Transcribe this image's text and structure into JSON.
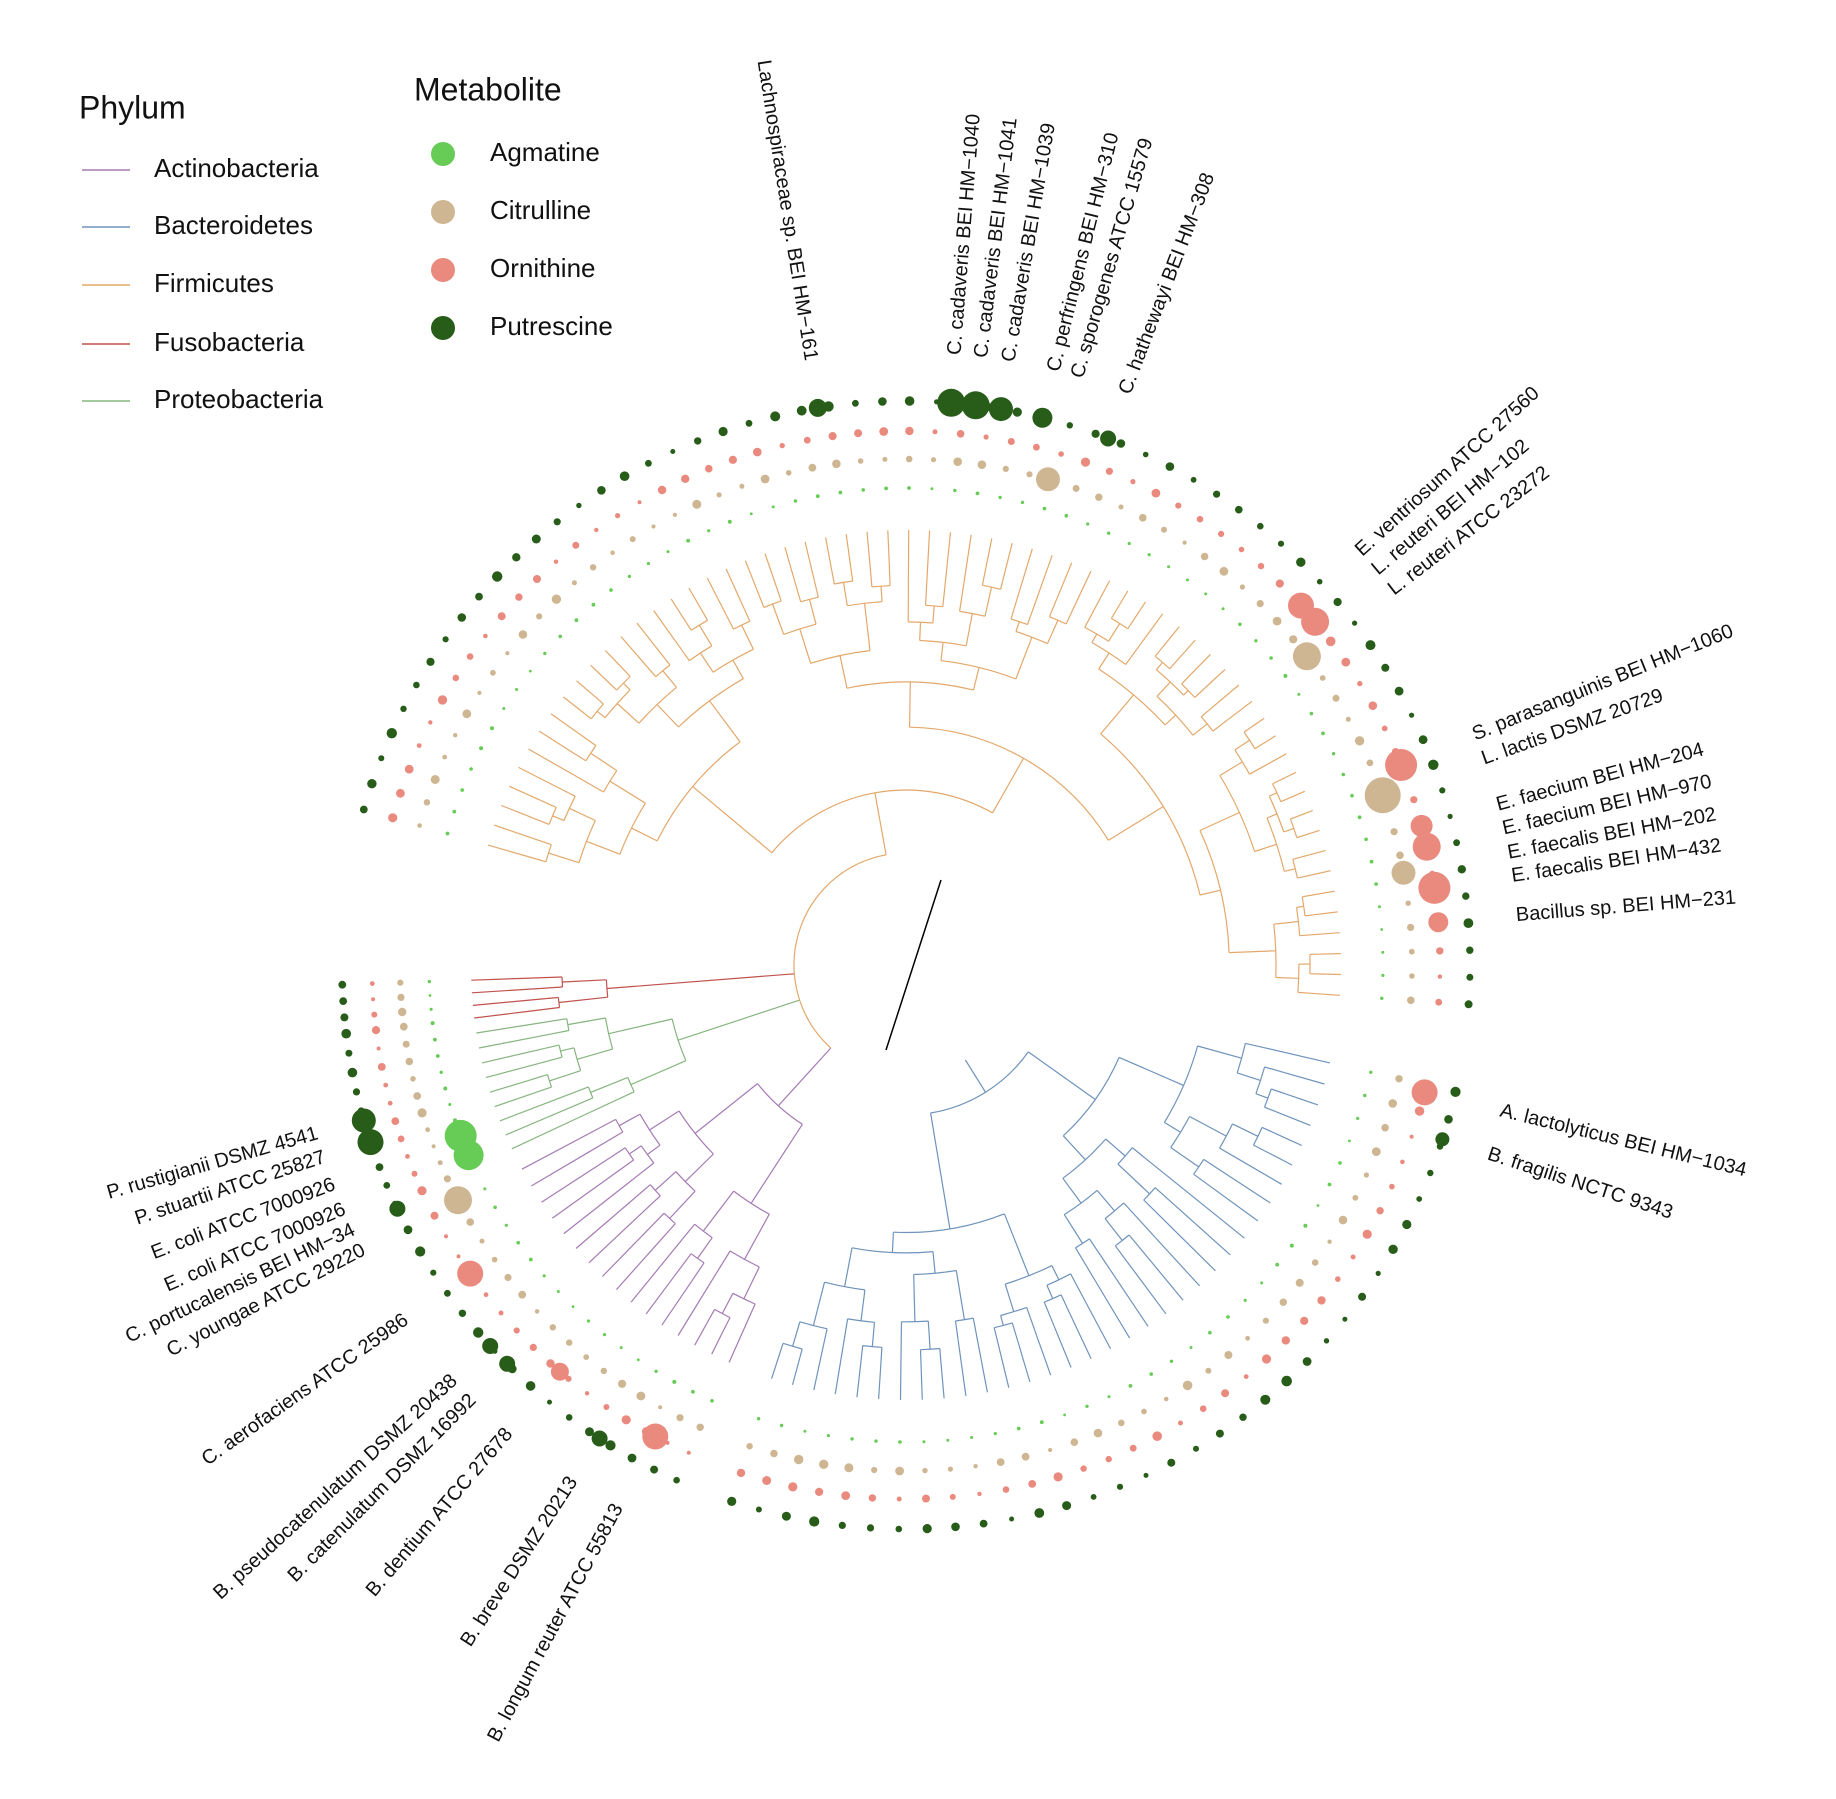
{
  "legend_phylum": {
    "title": "Phylum",
    "items": [
      "Actinobacteria",
      "Bacteroidetes",
      "Firmicutes",
      "Fusobacteria",
      "Proteobacteria"
    ]
  },
  "legend_metabolite": {
    "title": "Metabolite",
    "items": [
      "Agmatine",
      "Citrulline",
      "Ornithine",
      "Putrescine"
    ]
  },
  "leaf_labels": [
    "Lachnospiraceae sp. BEI HM−161",
    "C. cadaveris BEI HM−1040",
    "C. cadaveris BEI HM−1041",
    "C. cadaveris BEI HM−1039",
    "C. perfringens BEI HM−310",
    "C. sporogenes ATCC 15579",
    "C. hathewayi BEI HM−308",
    "E. ventriosum ATCC 27560",
    "L. reuteri BEI HM−102",
    "L. reuteri ATCC 23272",
    "S. parasanguinis BEI HM−1060",
    "L. lactis DSMZ 20729",
    "E. faecium BEI HM−204",
    "E. faecium BEI HM−970",
    "E. faecalis BEI HM−202",
    "E. faecalis BEI HM−432",
    "Bacillus sp. BEI HM−231",
    "A. lactolyticus BEI HM−1034",
    "B. fragilis NCTC 9343",
    "P. rustigianii DSMZ 4541",
    "P. stuartii ATCC 25827",
    "E. coli ATCC 7000926",
    "E. coli ATCC 7000926",
    "C. portucalensis BEI HM−34",
    "C. youngae ATCC 29220",
    "C. aerofaciens ATCC 25986",
    "B. pseudocatenulatum DSMZ 20438",
    "B. catenulatum DSMZ 16992",
    "B. dentium ATCC 27678",
    "B. breve DSMZ 20213",
    "B. longum reuter ATCC 55813"
  ]
}
